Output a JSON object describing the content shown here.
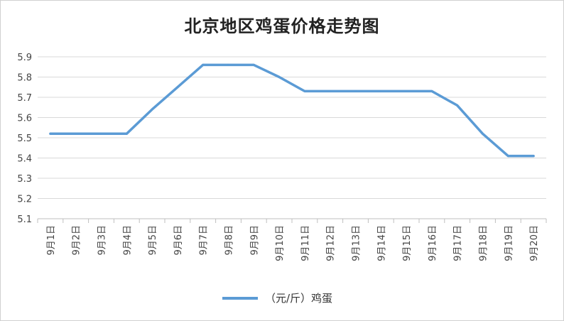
{
  "chart_data": {
    "type": "line",
    "title": "北京地区鸡蛋价格走势图",
    "categories": [
      "9月1日",
      "9月2日",
      "9月3日",
      "9月4日",
      "9月5日",
      "9月6日",
      "9月7日",
      "9月8日",
      "9月9日",
      "9月10日",
      "9月11日",
      "9月12日",
      "9月13日",
      "9月14日",
      "9月15日",
      "9月16日",
      "9月17日",
      "9月18日",
      "9月19日",
      "9月20日"
    ],
    "series": [
      {
        "name": "（元/斤）鸡蛋",
        "values": [
          5.52,
          5.52,
          5.52,
          5.52,
          5.64,
          5.75,
          5.86,
          5.86,
          5.86,
          5.8,
          5.73,
          5.73,
          5.73,
          5.73,
          5.73,
          5.73,
          5.66,
          5.52,
          5.41,
          5.41
        ],
        "color": "#5b9bd5"
      }
    ],
    "ylim": [
      5.1,
      5.9
    ],
    "yticks": [
      "5.1",
      "5.2",
      "5.3",
      "5.4",
      "5.5",
      "5.6",
      "5.7",
      "5.8",
      "5.9"
    ],
    "xlabel": "",
    "ylabel": "",
    "grid": true,
    "legend_position": "bottom"
  }
}
